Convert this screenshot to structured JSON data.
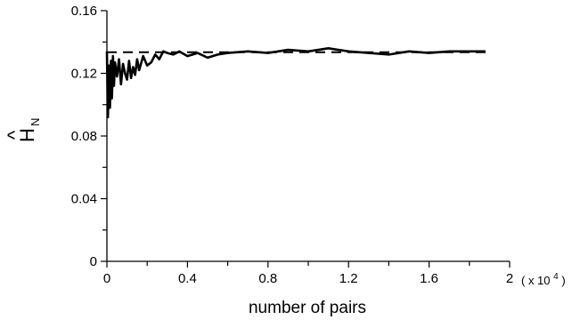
{
  "chart_data": {
    "type": "line",
    "xlabel": "number of pairs",
    "ylabel": "H",
    "ylabel_subscript": "N",
    "ylabel_hat": "^",
    "x_scale_note": "( x 10",
    "x_scale_exp": "4",
    "x_scale_close": ")",
    "xlim": [
      0,
      2
    ],
    "ylim": [
      0,
      0.16
    ],
    "x_ticks": [
      0,
      0.4,
      0.8,
      1.2,
      1.6,
      2
    ],
    "x_tick_labels": [
      "0",
      "0.4",
      "0.8",
      "1.2",
      "1.6",
      "2"
    ],
    "y_ticks": [
      0,
      0.04,
      0.08,
      0.12,
      0.16
    ],
    "y_tick_labels": [
      "0",
      "0.04",
      "0.08",
      "0.12",
      "0.16"
    ],
    "grid": false,
    "reference_line": {
      "y": 0.1335,
      "x": [
        0,
        1.88
      ],
      "style": "dashed"
    },
    "series": [
      {
        "x": [
          0,
          0.005,
          0.01,
          0.015,
          0.02,
          0.025,
          0.03,
          0.035,
          0.04,
          0.05,
          0.06,
          0.07,
          0.08,
          0.09,
          0.1,
          0.11,
          0.12,
          0.13,
          0.14,
          0.15,
          0.16,
          0.18,
          0.2,
          0.22,
          0.24,
          0.26,
          0.28,
          0.3,
          0.33,
          0.36,
          0.4,
          0.45,
          0.5,
          0.55,
          0.6,
          0.7,
          0.8,
          0.9,
          1.0,
          1.1,
          1.2,
          1.3,
          1.4,
          1.5,
          1.6,
          1.7,
          1.8,
          1.88
        ],
        "y": [
          0.134,
          0.092,
          0.125,
          0.098,
          0.128,
          0.104,
          0.131,
          0.112,
          0.127,
          0.118,
          0.129,
          0.113,
          0.126,
          0.12,
          0.116,
          0.128,
          0.117,
          0.124,
          0.119,
          0.129,
          0.122,
          0.131,
          0.125,
          0.127,
          0.132,
          0.129,
          0.134,
          0.133,
          0.132,
          0.134,
          0.131,
          0.133,
          0.13,
          0.132,
          0.133,
          0.134,
          0.133,
          0.135,
          0.134,
          0.136,
          0.134,
          0.133,
          0.132,
          0.134,
          0.133,
          0.134,
          0.134,
          0.134
        ]
      }
    ]
  }
}
